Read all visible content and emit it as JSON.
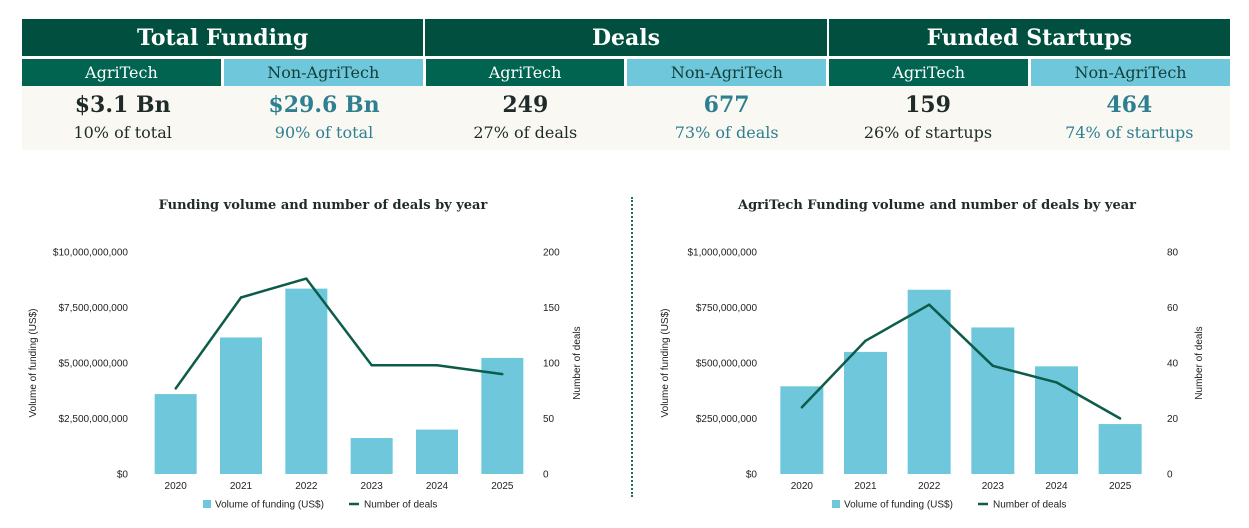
{
  "kpi": {
    "sections": [
      {
        "title": "Total Funding",
        "agri_label": "AgriTech",
        "non_label": "Non-AgriTech",
        "agri_value": "$3.1 Bn",
        "agri_pct": "10% of total",
        "non_value": "$29.6 Bn",
        "non_pct": "90% of total"
      },
      {
        "title": "Deals",
        "agri_label": "AgriTech",
        "non_label": "Non-AgriTech",
        "agri_value": "249",
        "agri_pct": "27% of deals",
        "non_value": "677",
        "non_pct": "73% of deals"
      },
      {
        "title": "Funded Startups",
        "agri_label": "AgriTech",
        "non_label": "Non-AgriTech",
        "agri_value": "159",
        "agri_pct": "26% of startups",
        "non_value": "464",
        "non_pct": "74% of startups"
      }
    ]
  },
  "colors": {
    "bar": "#6ec7db",
    "line": "#0d5c49",
    "axis_text": "#222222"
  },
  "chart_data": [
    {
      "type": "bar",
      "title": "Funding volume and number of deals by year",
      "categories": [
        "2020",
        "2021",
        "2022",
        "2023",
        "2024",
        "2025"
      ],
      "ylabel": "Volume of funding (US$)",
      "y2label": "Number of deals",
      "ylim": [
        0,
        10000000000
      ],
      "y2lim": [
        0,
        200
      ],
      "yticks": [
        "$0",
        "$2,500,000,000",
        "$5,000,000,000",
        "$7,500,000,000",
        "$10,000,000,000"
      ],
      "y2ticks": [
        "0",
        "50",
        "100",
        "150",
        "200"
      ],
      "series": [
        {
          "name": "Volume of funding (US$)",
          "type": "bar",
          "values": [
            3600000000,
            6150000000,
            8350000000,
            1620000000,
            2000000000,
            5230000000
          ]
        },
        {
          "name": "Number of deals",
          "type": "line",
          "values": [
            77,
            159,
            176,
            98,
            98,
            90
          ]
        }
      ],
      "legend": [
        "Volume of funding (US$)",
        "Number of deals"
      ]
    },
    {
      "type": "bar",
      "title": "AgriTech Funding volume and number of deals by year",
      "categories": [
        "2020",
        "2021",
        "2022",
        "2023",
        "2024",
        "2025"
      ],
      "ylabel": "Volume of funding (US$)",
      "y2label": "Number of deals",
      "ylim": [
        0,
        1000000000
      ],
      "y2lim": [
        0,
        80
      ],
      "yticks": [
        "$0",
        "$250,000,000",
        "$500,000,000",
        "$750,000,000",
        "$1,000,000,000"
      ],
      "y2ticks": [
        "0",
        "20",
        "40",
        "60",
        "80"
      ],
      "series": [
        {
          "name": "Volume of funding (US$)",
          "type": "bar",
          "values": [
            395000000,
            550000000,
            830000000,
            660000000,
            485000000,
            225000000
          ]
        },
        {
          "name": "Number of deals",
          "type": "line",
          "values": [
            24,
            48,
            61,
            39,
            33,
            20
          ]
        }
      ],
      "legend": [
        "Volume of funding (US$)",
        "Number of deals"
      ]
    }
  ]
}
